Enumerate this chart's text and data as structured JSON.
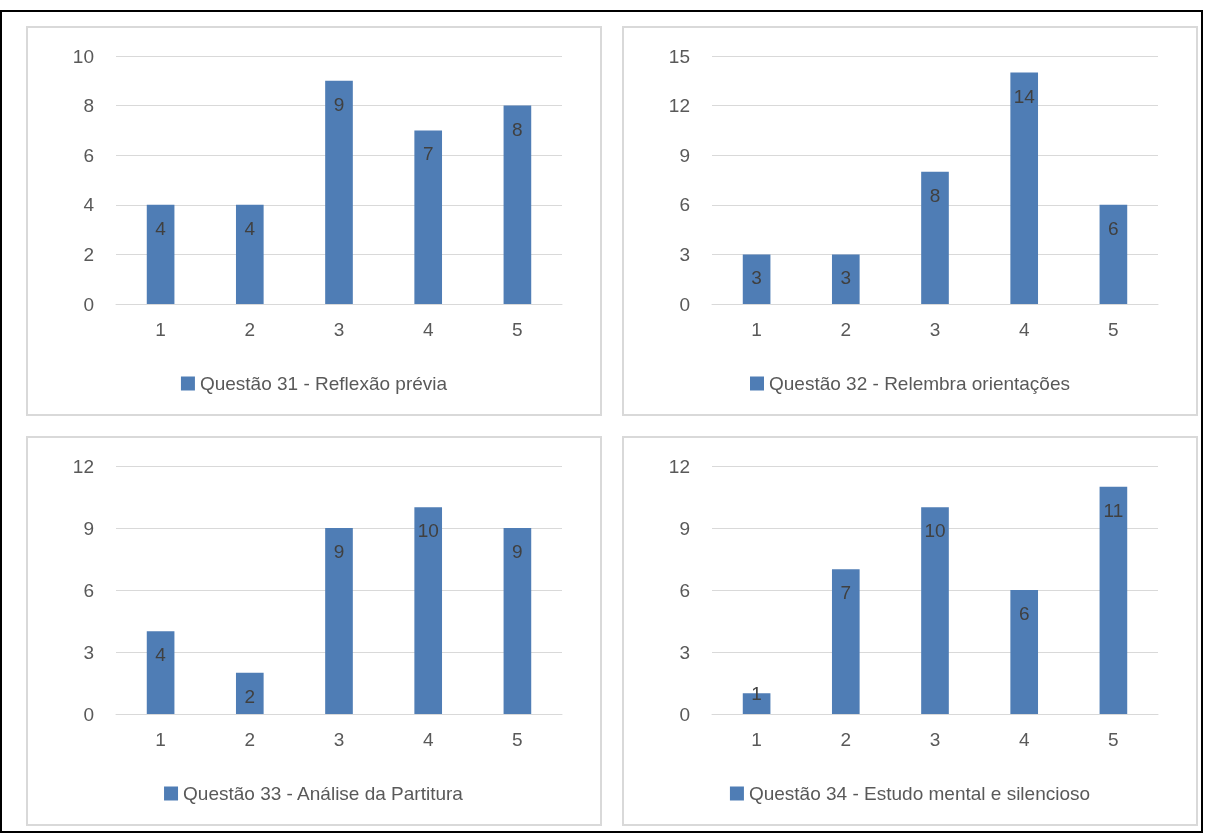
{
  "chart_data": [
    {
      "type": "bar",
      "categories": [
        "1",
        "2",
        "3",
        "4",
        "5"
      ],
      "series": [
        {
          "name": "Questão 31 - Reflexão prévia",
          "color": "#4f7db5",
          "values": [
            4,
            4,
            9,
            7,
            8
          ]
        }
      ],
      "ylim": [
        0,
        10
      ],
      "yticks": [
        0,
        2,
        4,
        6,
        8,
        10
      ],
      "grid": "y",
      "legend": "bottom",
      "data_labels": true
    },
    {
      "type": "bar",
      "categories": [
        "1",
        "2",
        "3",
        "4",
        "5"
      ],
      "series": [
        {
          "name": "Questão 32 - Relembra orientações",
          "color": "#4f7db5",
          "values": [
            3,
            3,
            8,
            14,
            6
          ]
        }
      ],
      "ylim": [
        0,
        15
      ],
      "yticks": [
        0,
        3,
        6,
        9,
        12,
        15
      ],
      "grid": "y",
      "legend": "bottom",
      "data_labels": true
    },
    {
      "type": "bar",
      "categories": [
        "1",
        "2",
        "3",
        "4",
        "5"
      ],
      "series": [
        {
          "name": "Questão 33 - Análise da Partitura",
          "color": "#4f7db5",
          "values": [
            4,
            2,
            9,
            10,
            9
          ]
        }
      ],
      "ylim": [
        0,
        12
      ],
      "yticks": [
        0,
        3,
        6,
        9,
        12
      ],
      "grid": "y",
      "legend": "bottom",
      "data_labels": true
    },
    {
      "type": "bar",
      "categories": [
        "1",
        "2",
        "3",
        "4",
        "5"
      ],
      "series": [
        {
          "name": "Questão 34 - Estudo mental e silencioso",
          "color": "#4f7db5",
          "values": [
            1,
            7,
            10,
            6,
            11
          ]
        }
      ],
      "ylim": [
        0,
        12
      ],
      "yticks": [
        0,
        3,
        6,
        9,
        12
      ],
      "grid": "y",
      "legend": "bottom",
      "data_labels": true
    }
  ]
}
